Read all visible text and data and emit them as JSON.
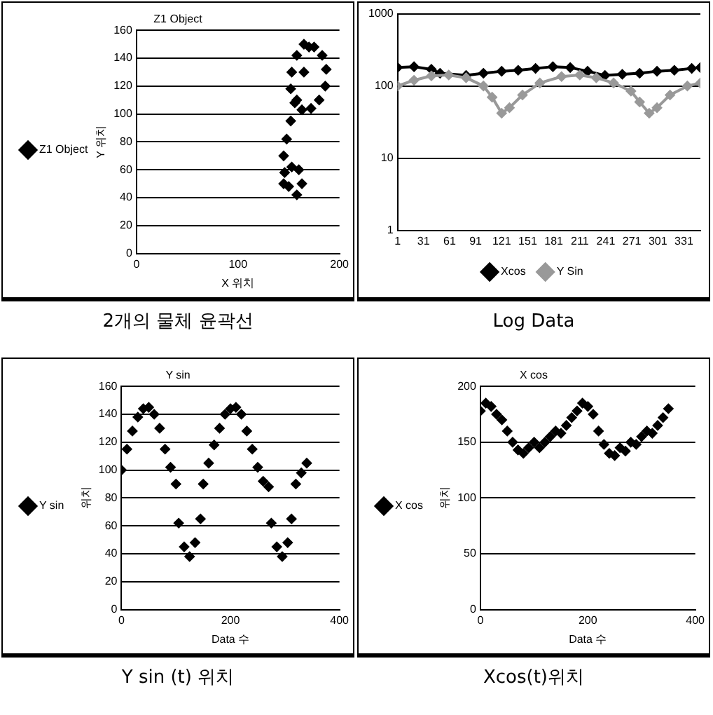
{
  "chart_data": [
    {
      "type": "scatter",
      "title": "Z1 Object",
      "xlabel": "X 위치",
      "ylabel": "Y 위치",
      "legend": "left",
      "grid": "y",
      "marker": "diamond",
      "annotations": [
        "2개의 물체 윤곽선"
      ],
      "xlim": [
        0,
        200
      ],
      "xticks": [
        0,
        100,
        200
      ],
      "ylim": [
        0,
        160
      ],
      "yticks": [
        0,
        20,
        40,
        60,
        80,
        100,
        120,
        140,
        160
      ],
      "series": [
        {
          "name": "Z1 Object",
          "color": "#000000",
          "x": [
            165,
            175,
            183,
            187,
            186,
            180,
            172,
            163,
            156,
            152,
            153,
            158,
            170,
            165,
            158,
            152,
            148,
            145,
            146,
            150,
            158,
            163,
            160,
            153,
            145
          ],
          "values": [
            150,
            148,
            142,
            132,
            120,
            110,
            104,
            103,
            108,
            118,
            130,
            142,
            148,
            130,
            110,
            95,
            82,
            70,
            58,
            48,
            42,
            50,
            60,
            62,
            50
          ]
        }
      ]
    },
    {
      "type": "line",
      "legend": "bottom",
      "grid": "y",
      "log": "y",
      "marker": "diamond",
      "annotations": [
        "Log Data"
      ],
      "xlim": [
        1,
        350
      ],
      "xticks": [
        1,
        31,
        61,
        91,
        121,
        151,
        181,
        211,
        241,
        271,
        301,
        331
      ],
      "ylim": [
        1,
        1000
      ],
      "yticks": [
        1,
        10,
        100,
        1000
      ],
      "series": [
        {
          "name": "Xcos",
          "color": "#000000",
          "x": [
            1,
            20,
            40,
            50,
            80,
            100,
            121,
            140,
            160,
            180,
            200,
            220,
            240,
            260,
            280,
            300,
            320,
            340,
            350
          ],
          "values": [
            180,
            185,
            170,
            150,
            140,
            150,
            160,
            165,
            175,
            185,
            180,
            160,
            140,
            145,
            150,
            160,
            165,
            175,
            180
          ]
        },
        {
          "name": "Y Sin",
          "color": "#999999",
          "x": [
            1,
            20,
            40,
            60,
            80,
            100,
            110,
            121,
            130,
            145,
            165,
            190,
            211,
            230,
            250,
            270,
            280,
            291,
            300,
            315,
            335,
            350
          ],
          "values": [
            100,
            120,
            138,
            142,
            130,
            100,
            70,
            42,
            50,
            75,
            110,
            135,
            142,
            130,
            110,
            85,
            60,
            42,
            50,
            75,
            100,
            110
          ]
        }
      ]
    },
    {
      "type": "scatter",
      "title": "Y sin",
      "xlabel": "Data 수",
      "ylabel": "위치",
      "legend": "left",
      "grid": "y",
      "marker": "diamond",
      "annotations": [
        "Y sin (t) 위치"
      ],
      "xlim": [
        0,
        400
      ],
      "xticks": [
        0,
        200,
        400
      ],
      "ylim": [
        0,
        160
      ],
      "yticks": [
        0,
        20,
        40,
        60,
        80,
        100,
        120,
        140,
        160
      ],
      "series": [
        {
          "name": "Y sin",
          "color": "#000000",
          "x": [
            0,
            10,
            20,
            30,
            40,
            50,
            60,
            70,
            80,
            90,
            100,
            105,
            115,
            125,
            135,
            145,
            150,
            160,
            170,
            180,
            190,
            200,
            210,
            220,
            230,
            240,
            250,
            260,
            270,
            275,
            285,
            295,
            305,
            312,
            320,
            330,
            340
          ],
          "values": [
            100,
            115,
            128,
            138,
            144,
            145,
            140,
            130,
            115,
            102,
            90,
            62,
            45,
            38,
            48,
            65,
            90,
            105,
            118,
            130,
            140,
            144,
            145,
            140,
            128,
            115,
            102,
            92,
            88,
            62,
            45,
            38,
            48,
            65,
            90,
            98,
            105
          ]
        }
      ]
    },
    {
      "type": "scatter",
      "title": "X cos",
      "xlabel": "Data 수",
      "ylabel": "위치",
      "legend": "left",
      "grid": "y",
      "marker": "diamond",
      "annotations": [
        "Xcos(t)위치"
      ],
      "xlim": [
        0,
        400
      ],
      "xticks": [
        0,
        200,
        400
      ],
      "ylim": [
        0,
        200
      ],
      "yticks": [
        0,
        50,
        100,
        150,
        200
      ],
      "series": [
        {
          "name": "X cos",
          "color": "#000000",
          "x": [
            0,
            10,
            20,
            30,
            40,
            50,
            60,
            70,
            80,
            90,
            100,
            110,
            120,
            130,
            140,
            150,
            160,
            170,
            180,
            190,
            200,
            210,
            220,
            230,
            240,
            250,
            260,
            270,
            280,
            290,
            300,
            310,
            320,
            330,
            340,
            350
          ],
          "values": [
            178,
            185,
            182,
            175,
            170,
            160,
            150,
            143,
            140,
            145,
            150,
            145,
            150,
            155,
            160,
            158,
            165,
            172,
            178,
            185,
            182,
            175,
            160,
            148,
            140,
            138,
            145,
            142,
            150,
            148,
            155,
            160,
            158,
            165,
            172,
            180
          ]
        }
      ]
    }
  ]
}
